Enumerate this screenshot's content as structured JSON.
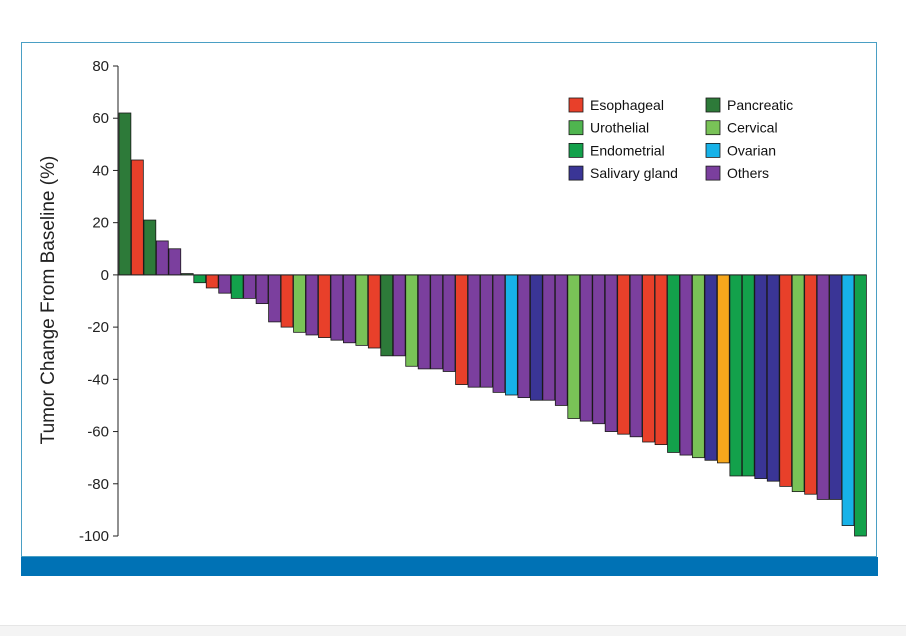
{
  "chart_data": {
    "type": "bar",
    "title": "",
    "xlabel": "",
    "ylabel": "Tumor Change From Baseline (%)",
    "ylim": [
      -100,
      80
    ],
    "yticks": [
      80,
      60,
      40,
      20,
      0,
      -20,
      -40,
      -60,
      -80,
      -100
    ],
    "grid": false,
    "legend_position": "top-right",
    "legend": [
      {
        "name": "Esophageal",
        "color": "#e8402a"
      },
      {
        "name": "Pancreatic",
        "color": "#2d7a39"
      },
      {
        "name": "Urothelial",
        "color": "#4fb54f"
      },
      {
        "name": "Cervical",
        "color": "#79c257"
      },
      {
        "name": "Endometrial",
        "color": "#13a14b"
      },
      {
        "name": "Ovarian",
        "color": "#17b2e8"
      },
      {
        "name": "Salivary gland",
        "color": "#3a3596"
      },
      {
        "name": "Others",
        "color": "#7b3f9e"
      }
    ],
    "bars": [
      {
        "category": "Pancreatic",
        "value": 62
      },
      {
        "category": "Esophageal",
        "value": 44
      },
      {
        "category": "Pancreatic",
        "value": 21
      },
      {
        "category": "Others",
        "value": 13
      },
      {
        "category": "Others",
        "value": 10
      },
      {
        "category": "Pancreatic",
        "value": 0.5
      },
      {
        "category": "Endometrial",
        "value": -3
      },
      {
        "category": "Esophageal",
        "value": -5
      },
      {
        "category": "Others",
        "value": -7
      },
      {
        "category": "Endometrial",
        "value": -9
      },
      {
        "category": "Others",
        "value": -9
      },
      {
        "category": "Others",
        "value": -11
      },
      {
        "category": "Others",
        "value": -18
      },
      {
        "category": "Esophageal",
        "value": -20
      },
      {
        "category": "Cervical",
        "value": -22
      },
      {
        "category": "Others",
        "value": -23
      },
      {
        "category": "Esophageal",
        "value": -24
      },
      {
        "category": "Others",
        "value": -25
      },
      {
        "category": "Others",
        "value": -26
      },
      {
        "category": "Cervical",
        "value": -27
      },
      {
        "category": "Esophageal",
        "value": -28
      },
      {
        "category": "Pancreatic",
        "value": -31
      },
      {
        "category": "Others",
        "value": -31
      },
      {
        "category": "Cervical",
        "value": -35
      },
      {
        "category": "Others",
        "value": -36
      },
      {
        "category": "Others",
        "value": -36
      },
      {
        "category": "Others",
        "value": -37
      },
      {
        "category": "Esophageal",
        "value": -42
      },
      {
        "category": "Others",
        "value": -43
      },
      {
        "category": "Others",
        "value": -43
      },
      {
        "category": "Others",
        "value": -45
      },
      {
        "category": "Ovarian",
        "value": -46
      },
      {
        "category": "Others",
        "value": -47
      },
      {
        "category": "Salivary gland",
        "value": -48
      },
      {
        "category": "Others",
        "value": -48
      },
      {
        "category": "Others",
        "value": -50
      },
      {
        "category": "Cervical",
        "value": -55
      },
      {
        "category": "Others",
        "value": -56
      },
      {
        "category": "Others",
        "value": -57
      },
      {
        "category": "Others",
        "value": -60
      },
      {
        "category": "Esophageal",
        "value": -61
      },
      {
        "category": "Others",
        "value": -62
      },
      {
        "category": "Esophageal",
        "value": -64
      },
      {
        "category": "Esophageal",
        "value": -65
      },
      {
        "category": "Endometrial",
        "value": -68
      },
      {
        "category": "Others",
        "value": -69
      },
      {
        "category": "Cervical",
        "value": -70
      },
      {
        "category": "Salivary gland",
        "value": -71
      },
      {
        "category": "",
        "color": "#f6a71c",
        "value": -72
      },
      {
        "category": "Endometrial",
        "value": -77
      },
      {
        "category": "Endometrial",
        "value": -77
      },
      {
        "category": "Salivary gland",
        "value": -78
      },
      {
        "category": "Salivary gland",
        "value": -79
      },
      {
        "category": "Esophageal",
        "value": -81
      },
      {
        "category": "Cervical",
        "value": -83
      },
      {
        "category": "Esophageal",
        "value": -84
      },
      {
        "category": "Others",
        "value": -86
      },
      {
        "category": "Salivary gland",
        "value": -86
      },
      {
        "category": "Ovarian",
        "value": -96
      },
      {
        "category": "Endometrial",
        "value": -100
      }
    ]
  }
}
